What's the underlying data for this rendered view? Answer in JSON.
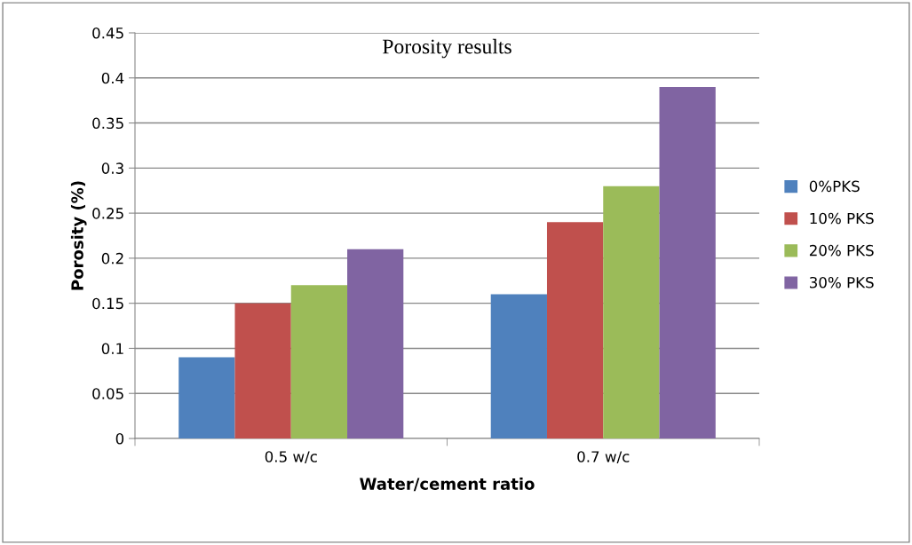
{
  "chart_data": {
    "type": "bar",
    "title": "Porosity results",
    "xlabel": "Water/cement ratio",
    "ylabel": "Porosity (%)",
    "categories": [
      "0.5 w/c",
      "0.7 w/c"
    ],
    "series": [
      {
        "name": "0%PKS",
        "color": "#4f81bd",
        "values": [
          0.09,
          0.16
        ]
      },
      {
        "name": "10% PKS",
        "color": "#c0504d",
        "values": [
          0.15,
          0.24
        ]
      },
      {
        "name": "20% PKS",
        "color": "#9bbb59",
        "values": [
          0.17,
          0.28
        ]
      },
      {
        "name": "30% PKS",
        "color": "#8064a2",
        "values": [
          0.21,
          0.39
        ]
      }
    ],
    "ylim": [
      0,
      0.45
    ],
    "yticks": [
      0,
      0.05,
      0.1,
      0.15,
      0.2,
      0.25,
      0.3,
      0.35,
      0.4,
      0.45
    ],
    "grid": "y",
    "legend": "right"
  }
}
